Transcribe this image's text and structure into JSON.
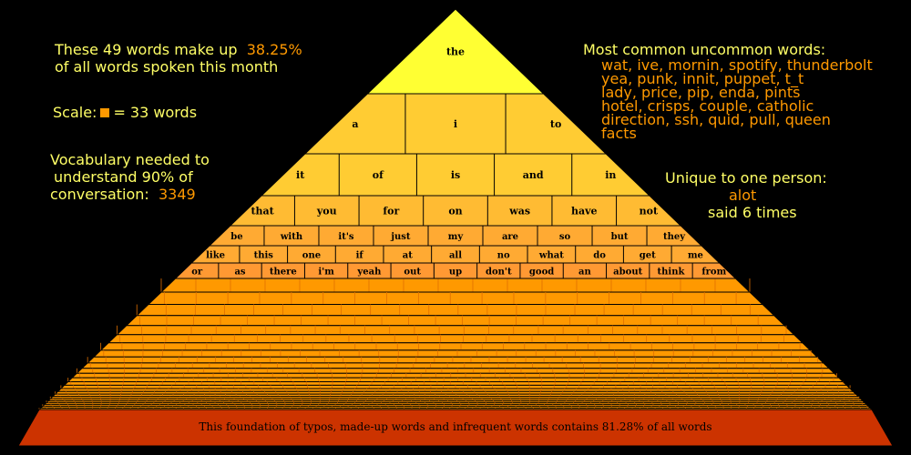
{
  "summary": {
    "line1": "These 49 words make up",
    "percent": "38.25%",
    "line2": "of all words spoken this month"
  },
  "scale": {
    "label": "Scale:",
    "equals": "= 33 words"
  },
  "vocabulary": {
    "line1": "Vocabulary needed to",
    "line2": "understand 90% of",
    "line3": "conversation:",
    "value": "3349"
  },
  "common_uncommon": {
    "title": "Most common uncommon words:",
    "lines": [
      "wat, ive, mornin, spotify, thunderbolt",
      "yea, punk, innit, puppet, t_t",
      "lady, price, pip, enda, pints",
      "hotel, crisps, couple, catholic",
      "direction, ssh, quid, pull, queen",
      "facts"
    ]
  },
  "unique": {
    "title": "Unique to one person:",
    "word": "alot",
    "count": "said 6 times"
  },
  "foundation": {
    "text": "This foundation of typos, made-up words and infrequent words contains 81.28% of all words"
  },
  "colors": {
    "apex": "#ffff33",
    "row2": "#ffcc33",
    "row3": "#ffcc33",
    "row4": "#ffbb33",
    "row5": "#ffaa33",
    "row6": "#ffaa33",
    "row7": "#ff9933",
    "body": "#ff9900",
    "body_dark": "#e07000",
    "foundation": "#cc3300",
    "text_yellow": "#ffff66",
    "text_orange": "#ff9900"
  },
  "word_rows": [
    {
      "words": [
        "the"
      ]
    },
    {
      "words": [
        "a",
        "i",
        "to"
      ]
    },
    {
      "words": [
        "it",
        "of",
        "is",
        "and",
        "in"
      ]
    },
    {
      "words": [
        "that",
        "you",
        "for",
        "on",
        "was",
        "have",
        "not"
      ]
    },
    {
      "words": [
        "be",
        "with",
        "it's",
        "just",
        "my",
        "are",
        "so",
        "but",
        "they"
      ]
    },
    {
      "words": [
        "like",
        "this",
        "one",
        "if",
        "at",
        "all",
        "no",
        "what",
        "do",
        "get",
        "me"
      ]
    },
    {
      "words": [
        "or",
        "as",
        "there",
        "i'm",
        "yeah",
        "out",
        "up",
        "don't",
        "good",
        "an",
        "about",
        "think",
        "from"
      ]
    }
  ]
}
